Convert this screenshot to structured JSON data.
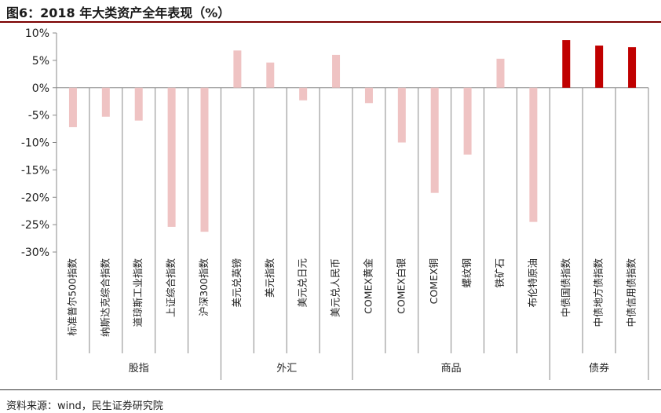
{
  "title": "图6：2018 年大类资产全年表现（%）",
  "source": "资料来源：wind，民生证券研究院",
  "colors": {
    "light": "#efc3c3",
    "dark": "#c00000",
    "title_rule": "#7a0000"
  },
  "chart_data": {
    "type": "bar",
    "title": "图6：2018 年大类资产全年表现（%）",
    "xlabel": "",
    "ylabel": "",
    "ylim": [
      -30,
      10
    ],
    "yticks": [
      -30,
      -25,
      -20,
      -15,
      -10,
      -5,
      0,
      5,
      10
    ],
    "ytick_labels": [
      "-30%",
      "-25%",
      "-20%",
      "-15%",
      "-10%",
      "-5%",
      "0%",
      "5%",
      "10%"
    ],
    "grid": false,
    "categories": [
      "标准普尔500指数",
      "纳斯达克综合指数",
      "道琼斯工业指数",
      "上证综合指数",
      "沪深300指数",
      "美元兑英镑",
      "美元指数",
      "美元兑日元",
      "美元兑人民币",
      "COMEX黄金",
      "COMEX白银",
      "COMEX铜",
      "螺纹钢",
      "铁矿石",
      "布伦特原油",
      "中债国债指数",
      "中债地方债指数",
      "中债信用债指数"
    ],
    "values": [
      -7.2,
      -5.3,
      -6.0,
      -25.4,
      -26.3,
      6.8,
      4.6,
      -2.3,
      6.0,
      -2.8,
      -10.0,
      -19.2,
      -12.2,
      5.3,
      -24.5,
      8.7,
      7.7,
      7.4
    ],
    "highlight": [
      false,
      false,
      false,
      false,
      false,
      false,
      false,
      false,
      false,
      false,
      false,
      false,
      false,
      false,
      false,
      true,
      true,
      true
    ],
    "groups": [
      {
        "label": "股指",
        "start": 0,
        "end": 4
      },
      {
        "label": "外汇",
        "start": 5,
        "end": 8
      },
      {
        "label": "商品",
        "start": 9,
        "end": 14
      },
      {
        "label": "债券",
        "start": 15,
        "end": 17
      }
    ]
  }
}
